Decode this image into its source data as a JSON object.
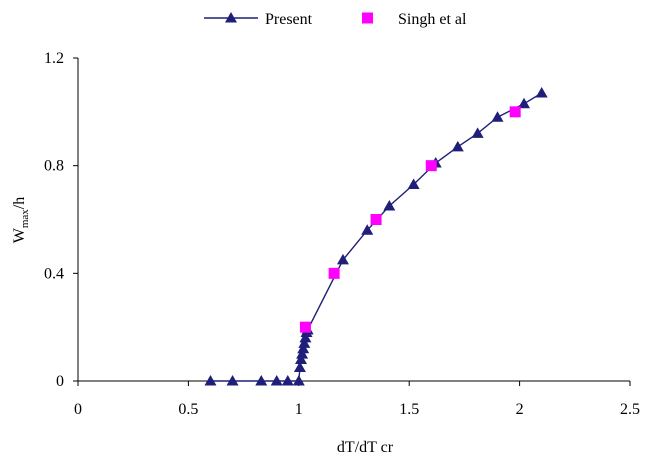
{
  "chart_data": {
    "type": "line",
    "xlabel": "dT/dT cr",
    "ylabel": {
      "main": "W",
      "subscript": "max",
      "suffix": "/h"
    },
    "xlim": [
      0,
      2.5
    ],
    "ylim": [
      0,
      1.2
    ],
    "x_ticks": [
      0,
      0.5,
      1,
      1.5,
      2,
      2.5
    ],
    "x_tick_labels": [
      "0",
      "0.5",
      "1",
      "1.5",
      "2",
      "2.5"
    ],
    "y_ticks": [
      0,
      0.4,
      0.8,
      1.2
    ],
    "y_tick_labels": [
      "0",
      "0.4",
      "0.8",
      "1.2"
    ],
    "grid": false,
    "legend_position": "top",
    "series": [
      {
        "name": "Present",
        "style": "line-with-triangle-markers",
        "color": "#1F1F7A",
        "x": [
          0.6,
          0.7,
          0.83,
          0.9,
          0.95,
          1.0,
          1.005,
          1.01,
          1.015,
          1.02,
          1.025,
          1.03,
          1.035,
          1.04,
          1.2,
          1.31,
          1.41,
          1.52,
          1.62,
          1.72,
          1.81,
          1.9,
          2.02,
          2.1
        ],
        "y": [
          0,
          0,
          0,
          0,
          0,
          0,
          0.05,
          0.08,
          0.1,
          0.12,
          0.14,
          0.16,
          0.18,
          0.19,
          0.45,
          0.56,
          0.65,
          0.73,
          0.81,
          0.87,
          0.92,
          0.98,
          1.03,
          1.07
        ]
      },
      {
        "name": "Singh et al",
        "style": "square-markers",
        "color": "#FF00FF",
        "x": [
          1.03,
          1.16,
          1.35,
          1.6,
          1.98
        ],
        "y": [
          0.2,
          0.4,
          0.6,
          0.8,
          1.0
        ]
      }
    ]
  }
}
